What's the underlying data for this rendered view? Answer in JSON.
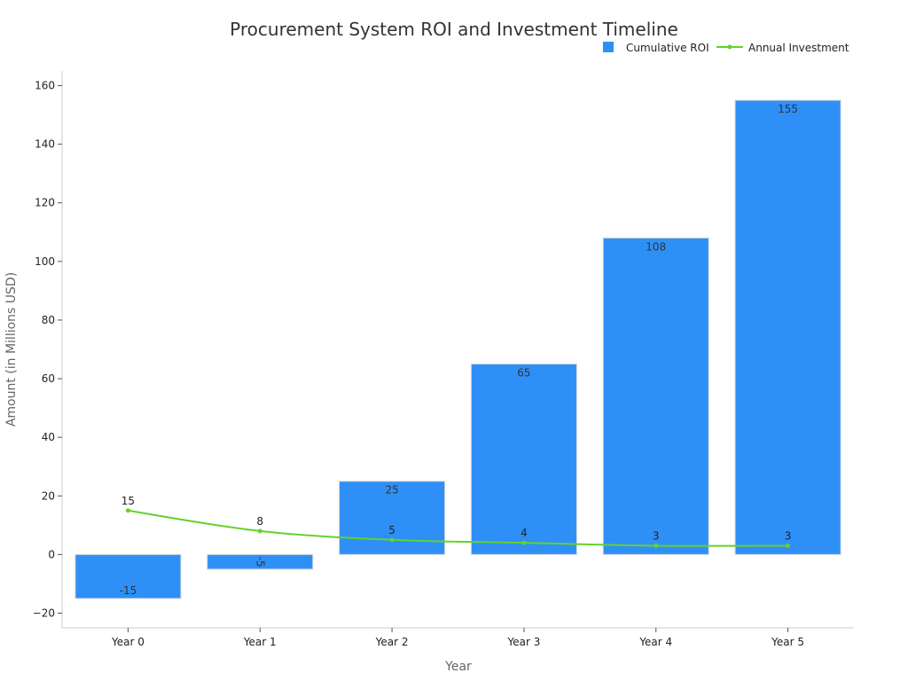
{
  "chart_data": {
    "type": "bar",
    "title": "Procurement System ROI and Investment Timeline",
    "xlabel": "Year",
    "ylabel": "Amount (in Millions USD)",
    "categories": [
      "Year 0",
      "Year 1",
      "Year 2",
      "Year 3",
      "Year 4",
      "Year 5"
    ],
    "ylim": [
      -25,
      165
    ],
    "yticks": [
      -20,
      0,
      20,
      40,
      60,
      80,
      100,
      120,
      140,
      160
    ],
    "ytick_labels": [
      "−20",
      "0",
      "20",
      "40",
      "60",
      "80",
      "100",
      "120",
      "140",
      "160"
    ],
    "grid": false,
    "legend_position": "top-right",
    "series": [
      {
        "name": "Cumulative ROI",
        "type": "bar",
        "color": "#2e90f7",
        "values": [
          -15,
          -5,
          25,
          65,
          108,
          155
        ],
        "labels": [
          "-15",
          "-5",
          "25",
          "65",
          "108",
          "155"
        ]
      },
      {
        "name": "Annual Investment",
        "type": "line",
        "color": "#66d12c",
        "values": [
          15,
          8,
          5,
          4,
          3,
          3
        ],
        "labels": [
          "15",
          "8",
          "5",
          "4",
          "3",
          "3"
        ]
      }
    ]
  }
}
